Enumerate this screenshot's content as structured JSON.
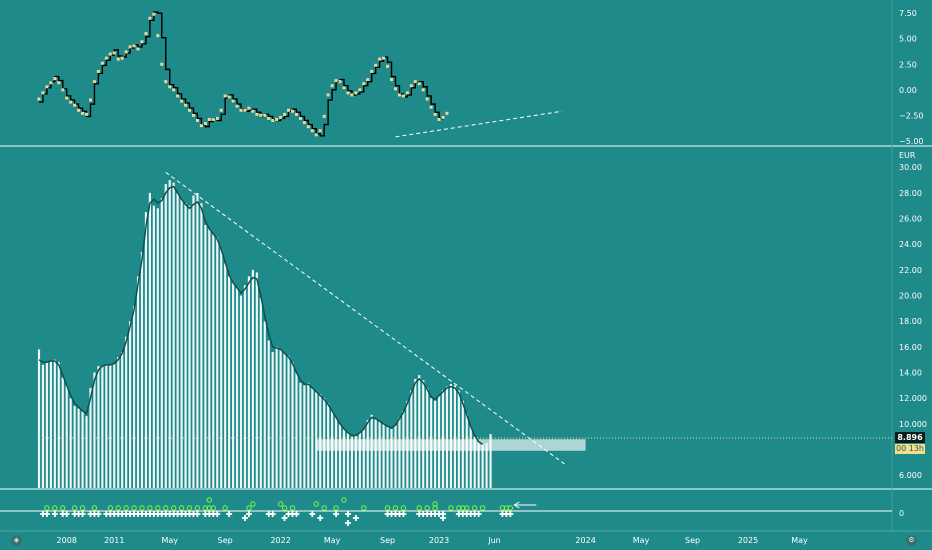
{
  "chart_data": [
    {
      "id": "oscillator",
      "type": "line",
      "y_ticks": [
        "7.50",
        "5.00",
        "2.50",
        "0.00",
        "−2.50",
        "−5.00"
      ],
      "ylim": [
        -5.3,
        8.2
      ],
      "x_index_range": [
        0,
        128
      ],
      "series": [
        {
          "style": "step",
          "color": "#000000",
          "values": [
            -1.2,
            -0.4,
            0.2,
            0.8,
            1.3,
            0.9,
            0.1,
            -0.6,
            -1.0,
            -1.4,
            -1.8,
            -2.1,
            -2.6,
            -1.4,
            0.6,
            1.6,
            2.4,
            2.9,
            3.4,
            3.9,
            3.3,
            3.2,
            3.6,
            4.1,
            4.4,
            4.2,
            4.5,
            5.2,
            6.8,
            7.6,
            7.5,
            5.1,
            2.0,
            0.5,
            0.2,
            -0.4,
            -0.9,
            -1.3,
            -1.8,
            -2.3,
            -2.8,
            -3.4,
            -3.6,
            -3.1,
            -2.8,
            -3.0,
            -2.4,
            -0.8,
            -0.5,
            -0.9,
            -1.4,
            -1.9,
            -2.1,
            -2.0,
            -1.9,
            -2.2,
            -2.6,
            -2.4,
            -2.6,
            -2.9,
            -3.0,
            -2.8,
            -2.6,
            -2.1,
            -1.9,
            -2.2,
            -2.6,
            -3.0,
            -3.4,
            -3.8,
            -4.3,
            -4.5,
            -3.4,
            -1.0,
            0.0,
            0.8,
            1.0,
            0.4,
            -0.1,
            -0.5,
            -0.4,
            -0.2,
            0.4,
            0.8,
            1.6,
            2.2,
            2.8,
            3.2,
            2.7,
            1.3,
            0.4,
            -0.4,
            -0.7,
            -0.5,
            0.2,
            0.7,
            0.8,
            0.3,
            -0.6,
            -1.4,
            -2.2,
            -2.8,
            -2.9
          ],
          "x_start": 0
        },
        {
          "style": "markers",
          "color": "#e8d89a",
          "values": [
            -0.9,
            -0.3,
            0.3,
            0.7,
            1.1,
            0.7,
            0.0,
            -0.8,
            -1.2,
            -1.5,
            -2.0,
            -2.3,
            -2.4,
            -1.0,
            0.8,
            1.8,
            2.6,
            3.1,
            3.5,
            3.6,
            3.0,
            3.1,
            3.7,
            4.2,
            4.3,
            4.0,
            4.7,
            5.5,
            7.0,
            7.4,
            5.3,
            2.5,
            0.8,
            0.3,
            0.0,
            -0.6,
            -1.1,
            -1.5,
            -2.0,
            -2.5,
            -3.0,
            -3.5,
            -3.3,
            -2.9,
            -2.9,
            -2.8,
            -2.0,
            -0.6,
            -0.7,
            -1.1,
            -1.6,
            -2.0,
            -2.0,
            -1.8,
            -2.1,
            -2.4,
            -2.5,
            -2.5,
            -2.8,
            -3.0,
            -2.9,
            -2.7,
            -2.4,
            -2.0,
            -2.1,
            -2.4,
            -2.8,
            -3.2,
            -3.6,
            -4.0,
            -4.4,
            -4.0,
            -2.6,
            -0.5,
            0.4,
            0.9,
            0.8,
            0.2,
            -0.3,
            -0.5,
            -0.3,
            0.0,
            0.6,
            1.0,
            1.8,
            2.4,
            3.0,
            3.1,
            2.3,
            1.0,
            0.1,
            -0.5,
            -0.6,
            -0.3,
            0.4,
            0.8,
            0.6,
            0.0,
            -0.9,
            -1.7,
            -2.4,
            -2.9,
            -2.7,
            -2.3
          ],
          "x_start": 0
        },
        {
          "style": "dashed",
          "color": "#ffffff",
          "points": [
            [
              90,
              -4.6
            ],
            [
              132,
              -2.1
            ]
          ]
        }
      ]
    },
    {
      "id": "price",
      "type": "bar",
      "unit": "EUR",
      "y_ticks": [
        "30.00",
        "28.00",
        "26.00",
        "24.00",
        "22.00",
        "20.00",
        "18.00",
        "16.00",
        "14.00",
        "12.000",
        "10.000",
        "6.000"
      ],
      "ylim": [
        5.0,
        31.5
      ],
      "x_index_range": [
        0,
        128
      ],
      "last_price": "8.896",
      "secondary_badge": "00 13h",
      "series": [
        {
          "style": "bars",
          "color": "#ffffff",
          "values": [
            15.8,
            14.6,
            14.8,
            14.9,
            15.0,
            14.8,
            13.6,
            13.0,
            12.0,
            11.4,
            11.2,
            11.0,
            10.6,
            12.8,
            14.0,
            14.5,
            14.5,
            14.6,
            14.6,
            14.7,
            15.2,
            15.6,
            16.8,
            18.0,
            19.2,
            21.5,
            23.4,
            26.5,
            28.0,
            27.0,
            26.8,
            27.6,
            28.7,
            29.0,
            28.8,
            28.0,
            27.5,
            27.2,
            27.0,
            27.8,
            28.0,
            27.2,
            25.5,
            25.2,
            24.8,
            24.5,
            23.6,
            22.5,
            21.5,
            21.0,
            20.6,
            20.0,
            20.8,
            21.5,
            22.0,
            21.8,
            19.8,
            18.0,
            16.5,
            15.6,
            16.0,
            15.8,
            15.5,
            15.3,
            14.8,
            14.0,
            13.2,
            13.0,
            13.2,
            12.8,
            12.5,
            12.3,
            12.0,
            11.6,
            11.0,
            10.5,
            10.0,
            9.6,
            9.3,
            9.0,
            9.1,
            9.3,
            9.6,
            10.3,
            10.7,
            10.4,
            10.2,
            10.0,
            9.8,
            9.6,
            9.9,
            10.5,
            11.0,
            11.8,
            12.6,
            13.5,
            13.8,
            13.4,
            12.8,
            12.0,
            11.8,
            12.2,
            12.6,
            12.9,
            13.1,
            13.0,
            12.6,
            11.8,
            10.8,
            9.8,
            9.0,
            8.6,
            8.4,
            8.5,
            9.2
          ],
          "x_start": 0
        },
        {
          "style": "line",
          "color": "#0f4f4f",
          "values": [
            15.0,
            14.8,
            14.8,
            14.9,
            14.9,
            14.6,
            13.8,
            13.0,
            12.2,
            11.6,
            11.3,
            11.0,
            10.8,
            12.0,
            13.4,
            14.2,
            14.5,
            14.6,
            14.6,
            14.7,
            15.0,
            15.5,
            16.4,
            17.6,
            18.9,
            20.9,
            22.8,
            25.4,
            27.2,
            27.5,
            27.2,
            27.4,
            28.0,
            28.4,
            28.5,
            28.0,
            27.5,
            27.1,
            26.8,
            27.1,
            27.3,
            26.8,
            25.8,
            25.2,
            24.8,
            24.4,
            23.6,
            22.6,
            21.6,
            21.0,
            20.6,
            20.2,
            20.5,
            21.0,
            21.4,
            21.3,
            20.0,
            18.4,
            17.0,
            16.0,
            15.9,
            15.8,
            15.5,
            15.2,
            14.7,
            14.0,
            13.4,
            13.1,
            13.1,
            12.8,
            12.5,
            12.2,
            11.9,
            11.5,
            11.0,
            10.5,
            10.0,
            9.6,
            9.3,
            9.1,
            9.1,
            9.3,
            9.6,
            10.1,
            10.5,
            10.4,
            10.2,
            10.0,
            9.8,
            9.7,
            9.9,
            10.4,
            10.9,
            11.6,
            12.4,
            13.2,
            13.5,
            13.2,
            12.7,
            12.1,
            11.9,
            12.2,
            12.5,
            12.8,
            12.9,
            12.8,
            12.4,
            11.6,
            10.7,
            9.8,
            9.1,
            8.6,
            8.4
          ],
          "x_start": 0
        },
        {
          "style": "dashed",
          "color": "#ffffff",
          "points": [
            [
              32,
              29.6
            ],
            [
              133,
              6.8
            ]
          ]
        },
        {
          "style": "dotted-hline",
          "color": "#f3df8a",
          "y": 8.896
        },
        {
          "style": "zone",
          "color": "#dfeeee",
          "x_range": [
            70,
            138
          ],
          "y_range": [
            7.9,
            8.8
          ]
        }
      ]
    },
    {
      "id": "signals",
      "type": "scatter",
      "y_ticks": [
        "0"
      ],
      "arrow_at_index": 120,
      "series": [
        {
          "style": "white-plus-low",
          "values": [
            1,
            2,
            4,
            6,
            7,
            9,
            10,
            11,
            13,
            14,
            15,
            17,
            18,
            19,
            20,
            21,
            22,
            23,
            24,
            25,
            26,
            27,
            28,
            29,
            30,
            31,
            32,
            33,
            34,
            35,
            36,
            37,
            38,
            39,
            40,
            42,
            43,
            44,
            45,
            48,
            53,
            58,
            59,
            63,
            64,
            65,
            69,
            75,
            78,
            88,
            89,
            90,
            91,
            92,
            96,
            97,
            98,
            99,
            100,
            101,
            102,
            106,
            107,
            108,
            109,
            110,
            111,
            117,
            118,
            119
          ]
        },
        {
          "style": "white-plus-mid",
          "values": [
            52,
            62,
            71,
            80,
            102
          ]
        },
        {
          "style": "white-plus-high",
          "values": [
            78
          ]
        },
        {
          "style": "green-circle-mid",
          "values": [
            2,
            4,
            6,
            9,
            11,
            14,
            18,
            20,
            22,
            24,
            26,
            28,
            30,
            32,
            34,
            36,
            38,
            40,
            42,
            43,
            44,
            47,
            53,
            62,
            64,
            72,
            75,
            82,
            88,
            90,
            92,
            96,
            98,
            100,
            104,
            106,
            107,
            108,
            110,
            112,
            117,
            118,
            119
          ]
        },
        {
          "style": "green-circle-high",
          "values": [
            54,
            61,
            70,
            100
          ]
        },
        {
          "style": "green-circle-top",
          "values": [
            43,
            77
          ]
        }
      ]
    }
  ],
  "x_axis": {
    "labels": [
      {
        "text": "2008",
        "i": 7
      },
      {
        "text": "2011",
        "i": 19
      },
      {
        "text": "May",
        "i": 33
      },
      {
        "text": "Sep",
        "i": 47
      },
      {
        "text": "2022",
        "i": 61
      },
      {
        "text": "May",
        "i": 74
      },
      {
        "text": "Sep",
        "i": 88
      },
      {
        "text": "2023",
        "i": 101
      },
      {
        "text": "Jun",
        "i": 115
      },
      {
        "text": "2024",
        "i": 138
      },
      {
        "text": "May",
        "i": 152
      },
      {
        "text": "Sep",
        "i": 165
      },
      {
        "text": "2025",
        "i": 179
      },
      {
        "text": "May",
        "i": 192
      }
    ]
  },
  "colors": {
    "background": "#1f8a8a",
    "separator": "#ffffff",
    "price_badge": "#0b1a1a",
    "secondary_badge": "#f3df8a"
  },
  "icons": [
    "tradingview-logo-icon",
    "settings-icon"
  ]
}
